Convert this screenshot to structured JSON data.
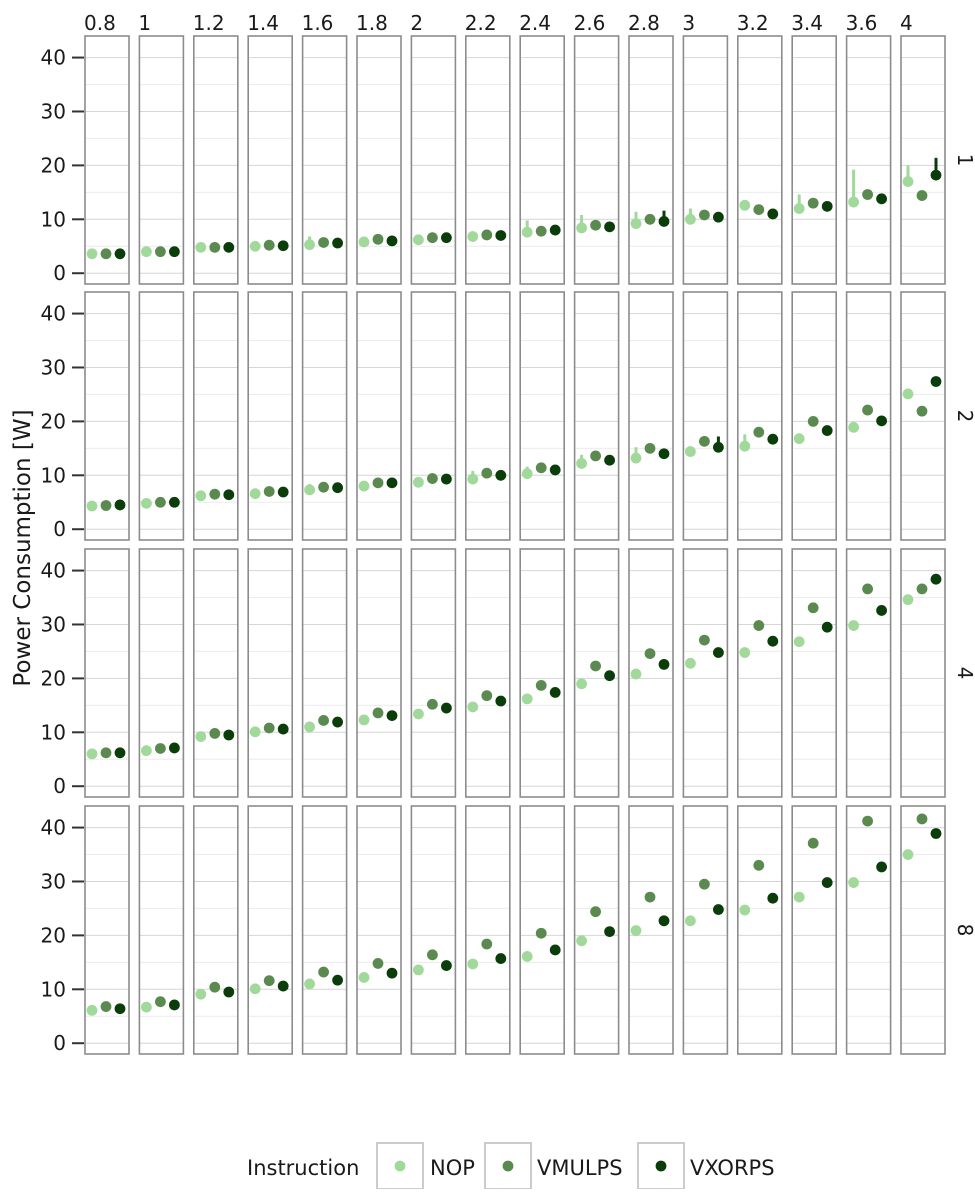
{
  "chart_data": {
    "type": "scatter",
    "ylabel": "Power Consumption [W]",
    "ylim": [
      -2,
      44
    ],
    "y_ticks": [
      "0",
      "10",
      "20",
      "30",
      "40"
    ],
    "column_labels": [
      "0.8",
      "1",
      "1.2",
      "1.4",
      "1.6",
      "1.8",
      "2",
      "2.2",
      "2.4",
      "2.6",
      "2.8",
      "3",
      "3.2",
      "3.4",
      "3.6",
      "4"
    ],
    "row_labels": [
      "1",
      "2",
      "4",
      "8"
    ],
    "grid": true,
    "legend_position": "bottom",
    "legend": {
      "title": "Instruction",
      "items": [
        "NOP",
        "VMULPS",
        "VXORPS"
      ]
    },
    "series_colors": [
      "#a1d99b",
      "#5a8a4f",
      "#0b3d0b"
    ],
    "panels": [
      {
        "row": "1",
        "values": [
          [
            3.6,
            3.6,
            3.6
          ],
          [
            4.0,
            4.0,
            4.0
          ],
          [
            4.8,
            4.8,
            4.8
          ],
          [
            5.0,
            5.2,
            5.1
          ],
          [
            5.3,
            5.7,
            5.6
          ],
          [
            5.8,
            6.3,
            6.0
          ],
          [
            6.2,
            6.6,
            6.6
          ],
          [
            6.8,
            7.1,
            7.0
          ],
          [
            7.6,
            7.8,
            8.0
          ],
          [
            8.4,
            8.9,
            8.6
          ],
          [
            9.2,
            10.0,
            9.6
          ],
          [
            10.0,
            10.8,
            10.4
          ],
          [
            12.6,
            11.8,
            11.0
          ],
          [
            12.0,
            13.0,
            12.4
          ],
          [
            13.2,
            14.6,
            13.8
          ],
          [
            17.0,
            14.4,
            18.2
          ]
        ],
        "error_tops": [
          [
            null,
            null,
            null
          ],
          [
            null,
            null,
            null
          ],
          [
            null,
            null,
            null
          ],
          [
            null,
            null,
            null
          ],
          [
            6.8,
            null,
            null
          ],
          [
            6.8,
            null,
            null
          ],
          [
            null,
            null,
            null
          ],
          [
            null,
            null,
            null
          ],
          [
            9.8,
            null,
            null
          ],
          [
            10.8,
            null,
            null
          ],
          [
            11.4,
            null,
            11.6
          ],
          [
            12.0,
            null,
            null
          ],
          [
            13.2,
            null,
            null
          ],
          [
            14.6,
            null,
            null
          ],
          [
            19.2,
            null,
            null
          ],
          [
            20.0,
            null,
            21.4
          ]
        ]
      },
      {
        "row": "2",
        "values": [
          [
            4.3,
            4.4,
            4.5
          ],
          [
            4.8,
            5.0,
            5.0
          ],
          [
            6.2,
            6.5,
            6.4
          ],
          [
            6.6,
            7.0,
            6.9
          ],
          [
            7.3,
            7.8,
            7.7
          ],
          [
            8.0,
            8.6,
            8.6
          ],
          [
            8.7,
            9.4,
            9.3
          ],
          [
            9.3,
            10.4,
            10.0
          ],
          [
            10.3,
            11.4,
            11.0
          ],
          [
            12.2,
            13.6,
            12.8
          ],
          [
            13.2,
            15.0,
            14.0
          ],
          [
            14.4,
            16.3,
            15.2
          ],
          [
            15.4,
            18.0,
            16.7
          ],
          [
            16.8,
            20.0,
            18.3
          ],
          [
            18.9,
            22.1,
            20.1
          ],
          [
            25.1,
            21.9,
            27.4
          ]
        ],
        "error_tops": [
          [
            null,
            null,
            null
          ],
          [
            null,
            null,
            null
          ],
          [
            null,
            null,
            null
          ],
          [
            null,
            null,
            null
          ],
          [
            8.4,
            null,
            null
          ],
          [
            null,
            null,
            null
          ],
          [
            null,
            null,
            null
          ],
          [
            10.8,
            null,
            null
          ],
          [
            11.6,
            null,
            null
          ],
          [
            13.8,
            null,
            null
          ],
          [
            15.2,
            null,
            null
          ],
          [
            null,
            null,
            17.2
          ],
          [
            17.6,
            null,
            null
          ],
          [
            null,
            null,
            null
          ],
          [
            null,
            null,
            null
          ],
          [
            null,
            null,
            null
          ]
        ]
      },
      {
        "row": "4",
        "values": [
          [
            6.0,
            6.2,
            6.2
          ],
          [
            6.6,
            7.0,
            7.1
          ],
          [
            9.2,
            9.8,
            9.5
          ],
          [
            10.1,
            10.8,
            10.6
          ],
          [
            11.0,
            12.2,
            11.9
          ],
          [
            12.3,
            13.6,
            13.1
          ],
          [
            13.4,
            15.2,
            14.5
          ],
          [
            14.7,
            16.8,
            15.8
          ],
          [
            16.2,
            18.7,
            17.4
          ],
          [
            19.0,
            22.3,
            20.5
          ],
          [
            20.8,
            24.6,
            22.6
          ],
          [
            22.8,
            27.1,
            24.8
          ],
          [
            24.8,
            29.8,
            26.9
          ],
          [
            26.8,
            33.1,
            29.5
          ],
          [
            29.8,
            36.6,
            32.6
          ],
          [
            34.6,
            36.6,
            38.4
          ]
        ],
        "error_tops": []
      },
      {
        "row": "8",
        "values": [
          [
            6.1,
            6.8,
            6.4
          ],
          [
            6.7,
            7.7,
            7.1
          ],
          [
            9.1,
            10.4,
            9.5
          ],
          [
            10.1,
            11.6,
            10.6
          ],
          [
            11.0,
            13.2,
            11.7
          ],
          [
            12.2,
            14.8,
            13.0
          ],
          [
            13.6,
            16.4,
            14.4
          ],
          [
            14.7,
            18.4,
            15.7
          ],
          [
            16.1,
            20.4,
            17.3
          ],
          [
            19.0,
            24.4,
            20.7
          ],
          [
            20.9,
            27.1,
            22.7
          ],
          [
            22.7,
            29.5,
            24.8
          ],
          [
            24.7,
            33.0,
            26.9
          ],
          [
            27.1,
            37.1,
            29.8
          ],
          [
            29.8,
            41.2,
            32.7
          ],
          [
            35.0,
            41.6,
            38.9
          ]
        ],
        "error_tops": []
      }
    ]
  }
}
